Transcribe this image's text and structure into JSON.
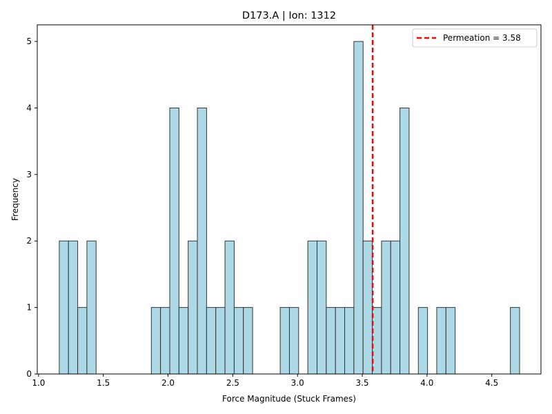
{
  "chart_data": {
    "type": "bar",
    "title": "D173.A | Ion: 1312",
    "xlabel": "Force Magnitude (Stuck Frames)",
    "ylabel": "Frequency",
    "xlim": [
      0.99,
      4.88
    ],
    "ylim": [
      0,
      5.25
    ],
    "xticks": [
      "1.0",
      "1.5",
      "2.0",
      "2.5",
      "3.0",
      "3.5",
      "4.0",
      "4.5"
    ],
    "yticks": [
      "0",
      "1",
      "2",
      "3",
      "4",
      "5"
    ],
    "bin_start": 1.16,
    "bin_width": 0.0711,
    "counts": [
      2,
      2,
      1,
      2,
      0,
      0,
      0,
      0,
      0,
      0,
      1,
      1,
      4,
      1,
      2,
      4,
      1,
      1,
      2,
      1,
      1,
      0,
      0,
      0,
      1,
      1,
      0,
      2,
      2,
      1,
      1,
      1,
      5,
      2,
      1,
      2,
      2,
      4,
      0,
      1,
      0,
      1,
      1,
      0,
      0,
      0,
      0,
      0,
      0,
      1
    ],
    "bar_fill": "#add8e6",
    "bar_edge": "#333333",
    "vline": {
      "x": 3.58,
      "color": "#ff0000",
      "style": "dashed"
    },
    "legend": {
      "label": "Permeation = 3.58",
      "position": "top-right"
    },
    "grid": false
  }
}
